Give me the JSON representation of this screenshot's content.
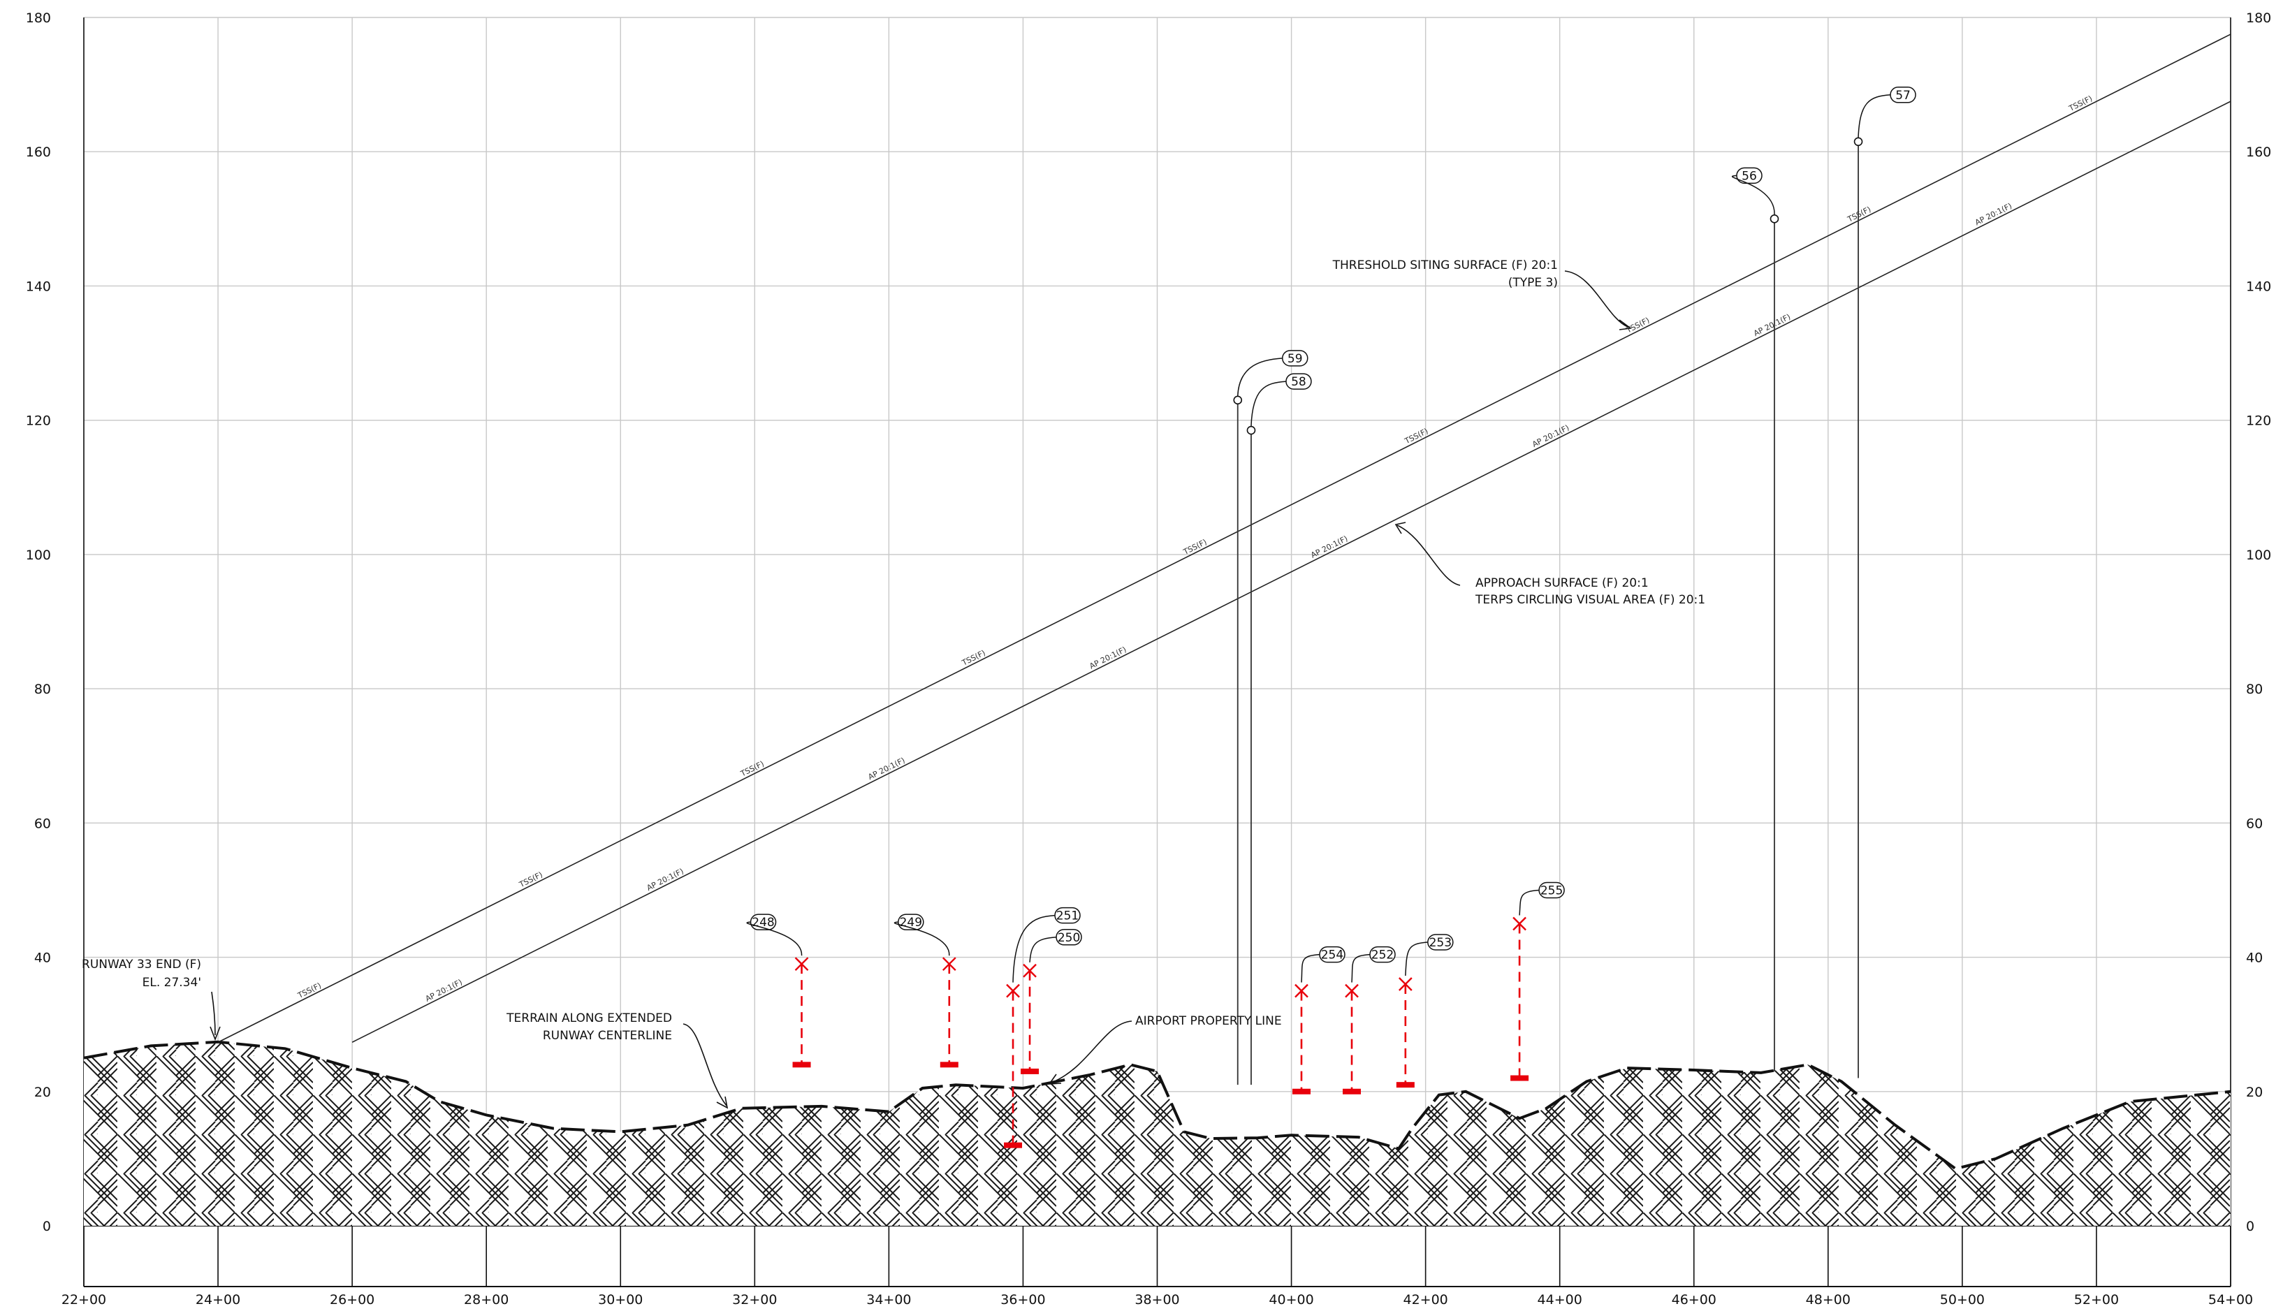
{
  "axes": {
    "y_ticks": [
      "0",
      "20",
      "40",
      "60",
      "80",
      "100",
      "120",
      "140",
      "160",
      "180"
    ],
    "x_ticks": [
      "22+00",
      "24+00",
      "26+00",
      "28+00",
      "30+00",
      "32+00",
      "34+00",
      "36+00",
      "38+00",
      "40+00",
      "42+00",
      "44+00",
      "46+00",
      "48+00",
      "50+00",
      "52+00",
      "54+00"
    ]
  },
  "surfaces": [
    {
      "name": "tss",
      "label": "TSS(F)",
      "start": [
        24.0,
        27.34
      ],
      "end": [
        54.0,
        177.5
      ]
    },
    {
      "name": "ap",
      "label": "AP 20:1(F)",
      "start": [
        26.0,
        27.34
      ],
      "end": [
        54.0,
        167.5
      ]
    }
  ],
  "terrain": [
    [
      22.0,
      25.0
    ],
    [
      23.0,
      26.8
    ],
    [
      24.0,
      27.4
    ],
    [
      25.0,
      26.4
    ],
    [
      26.0,
      23.5
    ],
    [
      26.8,
      21.5
    ],
    [
      27.3,
      18.5
    ],
    [
      28.0,
      16.5
    ],
    [
      29.0,
      14.5
    ],
    [
      30.0,
      14.0
    ],
    [
      31.0,
      15.0
    ],
    [
      31.8,
      17.5
    ],
    [
      33.0,
      17.8
    ],
    [
      34.0,
      17.0
    ],
    [
      34.5,
      20.5
    ],
    [
      35.0,
      21.0
    ],
    [
      36.0,
      20.5
    ],
    [
      37.0,
      22.5
    ],
    [
      37.6,
      24.0
    ],
    [
      38.0,
      23.0
    ],
    [
      38.4,
      14.0
    ],
    [
      38.8,
      13.0
    ],
    [
      39.5,
      13.1
    ],
    [
      40.0,
      13.5
    ],
    [
      41.0,
      13.2
    ],
    [
      41.6,
      11.5
    ],
    [
      41.8,
      14.5
    ],
    [
      42.2,
      19.5
    ],
    [
      42.6,
      20.0
    ],
    [
      43.0,
      18.0
    ],
    [
      43.4,
      16.0
    ],
    [
      43.8,
      17.5
    ],
    [
      44.4,
      21.5
    ],
    [
      45.0,
      23.5
    ],
    [
      46.0,
      23.2
    ],
    [
      47.0,
      22.8
    ],
    [
      47.7,
      24.0
    ],
    [
      48.2,
      21.5
    ],
    [
      49.0,
      15.0
    ],
    [
      49.9,
      8.5
    ],
    [
      50.5,
      10.0
    ],
    [
      51.5,
      14.5
    ],
    [
      52.5,
      18.5
    ],
    [
      53.5,
      19.5
    ],
    [
      54.0,
      20.0
    ]
  ],
  "obstacles_red": [
    {
      "id": "248",
      "station": 32.7,
      "top": 39.0,
      "ground": 24.0
    },
    {
      "id": "249",
      "station": 34.9,
      "top": 39.0,
      "ground": 24.0
    },
    {
      "id": "251",
      "station": 35.85,
      "top": 35.0,
      "ground": 12.0
    },
    {
      "id": "250",
      "station": 36.1,
      "top": 38.0,
      "ground": 23.0
    },
    {
      "id": "254",
      "station": 40.15,
      "top": 35.0,
      "ground": 20.0
    },
    {
      "id": "252",
      "station": 40.9,
      "top": 35.0,
      "ground": 20.0
    },
    {
      "id": "253",
      "station": 41.7,
      "top": 36.0,
      "ground": 21.0
    },
    {
      "id": "255",
      "station": 43.4,
      "top": 45.0,
      "ground": 22.0
    }
  ],
  "obstacles_tower": [
    {
      "id": "59",
      "station": 39.2,
      "top": 123.0,
      "ground": 21.0
    },
    {
      "id": "58",
      "station": 39.4,
      "top": 118.5,
      "ground": 21.0
    },
    {
      "id": "56",
      "station": 47.2,
      "top": 150.0,
      "ground": 23.0
    },
    {
      "id": "57",
      "station": 48.45,
      "top": 161.5,
      "ground": 22.0
    }
  ],
  "notes": {
    "runway_end": {
      "line1": "RUNWAY 33 END (F)",
      "line2": "EL. 27.34'"
    },
    "terrain": {
      "line1": "TERRAIN ALONG EXTENDED",
      "line2": "RUNWAY CENTERLINE"
    },
    "property": {
      "line1": "AIRPORT PROPERTY LINE"
    },
    "threshold": {
      "line1": "THRESHOLD SITING SURFACE (F) 20:1",
      "line2": "(TYPE 3)"
    },
    "approach": {
      "line1": "APPROACH SURFACE (F) 20:1",
      "line2": "TERPS CIRCLING VISUAL AREA (F) 20:1"
    }
  },
  "colors": {
    "obstacle": "#e8000b",
    "grid": "#c8c8c8",
    "line": "#111111"
  }
}
